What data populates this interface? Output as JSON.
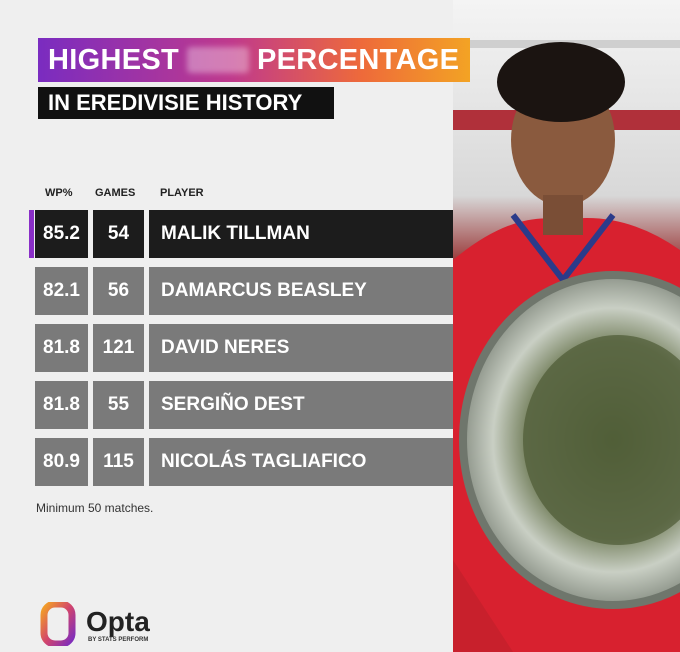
{
  "header": {
    "title_start": "HIGHEST",
    "title_end": "PERCENTAGE",
    "subtitle": "IN EREDIVISIE HISTORY"
  },
  "table": {
    "columns": [
      "WP%",
      "GAMES",
      "PLAYER"
    ],
    "rows": [
      [
        85.2,
        54,
        "MALIK TILLMAN"
      ],
      [
        82.1,
        56,
        "DAMARCUS BEASLEY"
      ],
      [
        81.8,
        121,
        "DAVID NERES"
      ],
      [
        81.8,
        55,
        "SERGIÑO DEST"
      ],
      [
        80.9,
        115,
        "NICOLÁS TAGLIAFICO"
      ]
    ]
  },
  "footnote": "Minimum 50 matches.",
  "logo": {
    "name": "Opta",
    "tagline": "BY STATS PERFORM"
  }
}
